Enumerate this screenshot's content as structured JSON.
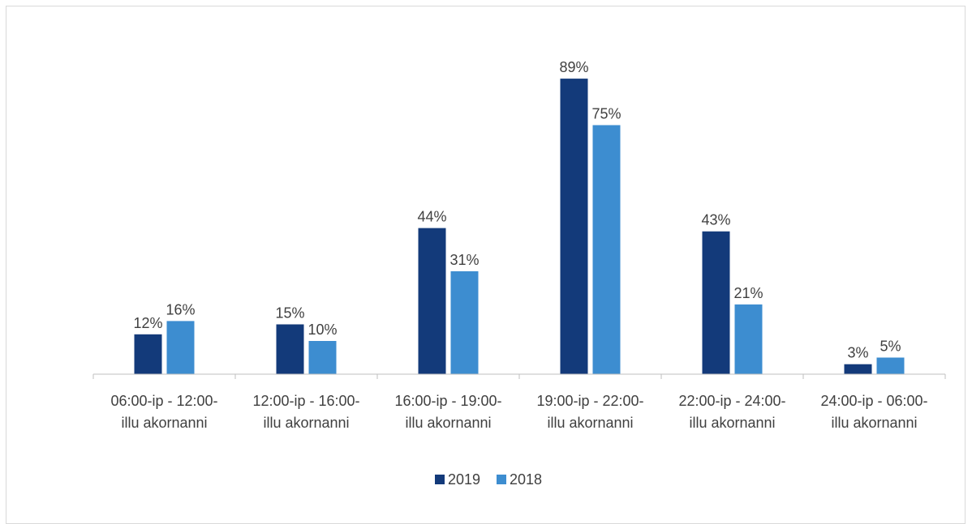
{
  "chart_data": {
    "type": "bar",
    "categories": [
      [
        "06:00-ip - 12:00-",
        "illu akornanni"
      ],
      [
        "12:00-ip - 16:00-",
        "illu akornanni"
      ],
      [
        "16:00-ip - 19:00-",
        "illu akornanni"
      ],
      [
        "19:00-ip - 22:00-",
        "illu akornanni"
      ],
      [
        "22:00-ip - 24:00-",
        "illu akornanni"
      ],
      [
        "24:00-ip - 06:00-",
        "illu akornanni"
      ]
    ],
    "series": [
      {
        "name": "2019",
        "values": [
          12,
          15,
          44,
          89,
          43,
          3
        ],
        "labels": [
          "12%",
          "15%",
          "44%",
          "89%",
          "43%",
          "3%"
        ],
        "color": "#133a7a"
      },
      {
        "name": "2018",
        "values": [
          16,
          10,
          31,
          75,
          21,
          5
        ],
        "labels": [
          "16%",
          "10%",
          "31%",
          "75%",
          "21%",
          "5%"
        ],
        "color": "#3d8dd0"
      }
    ],
    "ylim": [
      0,
      100
    ],
    "grid": false,
    "legend_position": "bottom"
  },
  "colors": {
    "axis": "#bfbfbf",
    "text": "#404040",
    "frame": "#d9d9d9"
  }
}
